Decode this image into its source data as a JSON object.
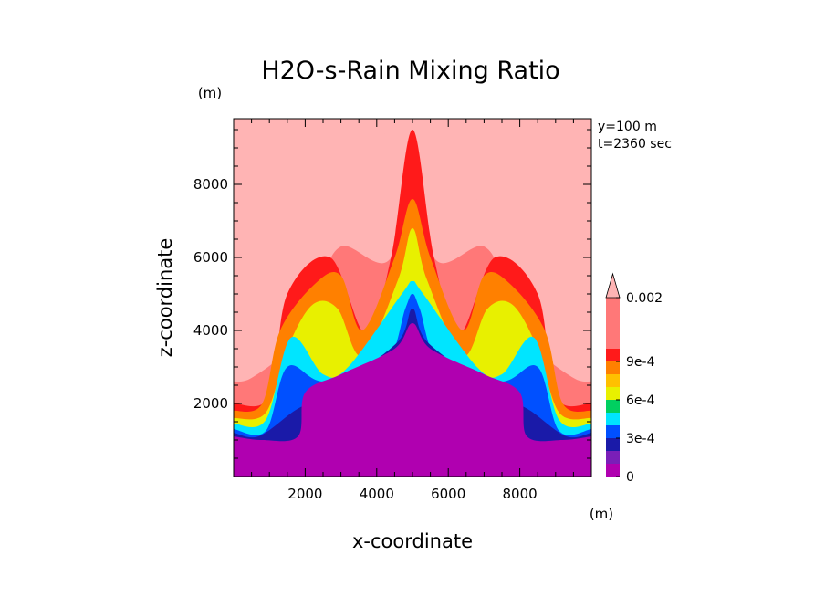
{
  "chart_data": {
    "type": "heatmap",
    "title": "H2O-s-Rain Mixing Ratio",
    "xlabel": "x-coordinate",
    "ylabel": "z-coordinate",
    "x_unit": "(m)",
    "y_unit": "(m)",
    "annotations": [
      "y=100 m",
      "t=2360 sec"
    ],
    "xlim": [
      0,
      10000
    ],
    "ylim": [
      0,
      9800
    ],
    "x_ticks": [
      2000,
      4000,
      6000,
      8000
    ],
    "y_ticks": [
      2000,
      4000,
      6000,
      8000
    ],
    "x_tick_labels": [
      "2000",
      "4000",
      "6000",
      "8000"
    ],
    "y_tick_labels": [
      "2000",
      "4000",
      "6000",
      "8000"
    ],
    "colorbar": {
      "levels": [
        0,
        0.0001,
        0.0002,
        0.0003,
        0.0004,
        0.0005,
        0.0006,
        0.0007,
        0.0008,
        0.0009,
        0.001,
        0.002
      ],
      "tick_labels": [
        "0",
        "3e-4",
        "6e-4",
        "9e-4",
        "0.002"
      ],
      "tick_values": [
        0,
        0.0003,
        0.0006,
        0.0009,
        0.002
      ],
      "colors": [
        "#b000b0",
        "#7a1fb8",
        "#1a1aa8",
        "#0050ff",
        "#00e5ff",
        "#00d060",
        "#e8f000",
        "#ffc000",
        "#ff8000",
        "#ff1a1a",
        "#ff7878",
        "#ffb4b4"
      ],
      "extend": "max"
    },
    "contours": [
      {
        "level_index": 11,
        "x": [
          0,
          0,
          900,
          1700,
          2500,
          4000,
          6000,
          7500,
          8300,
          9100,
          10000,
          10000
        ],
        "y": [
          9800,
          2600,
          2800,
          3600,
          5600,
          9200,
          9200,
          5600,
          3600,
          2800,
          2600,
          9800
        ]
      },
      {
        "level_index": 10,
        "x": [
          0,
          500,
          1500,
          2300,
          3000,
          4400,
          5000,
          5600,
          7000,
          7700,
          8500,
          9500,
          10000
        ],
        "y": [
          2600,
          2700,
          3500,
          5000,
          6300,
          6000,
          9500,
          6000,
          6300,
          5000,
          3500,
          2700,
          2600
        ]
      },
      {
        "level_index": 9,
        "x": [
          0,
          1000,
          1500,
          2700,
          3700,
          4400,
          5000,
          5600,
          6300,
          7300,
          8500,
          9000,
          10000
        ],
        "y": [
          2000,
          2200,
          5000,
          6000,
          3900,
          6000,
          9500,
          6000,
          3900,
          6000,
          5000,
          2200,
          2000
        ]
      },
      {
        "level_index": 8,
        "x": [
          0,
          800,
          1300,
          2300,
          3000,
          3600,
          4500,
          5000,
          5500,
          6400,
          7000,
          7700,
          8700,
          9200,
          10000
        ],
        "y": [
          1800,
          2000,
          4000,
          5300,
          5500,
          4000,
          6000,
          7600,
          6000,
          4000,
          5500,
          5300,
          4000,
          2000,
          1800
        ]
      },
      {
        "level_index": 6,
        "x": [
          0,
          900,
          1500,
          2200,
          2900,
          3600,
          4600,
          5000,
          5400,
          6400,
          7100,
          7800,
          8500,
          9100,
          10000
        ],
        "y": [
          1600,
          1750,
          3500,
          4700,
          4600,
          3300,
          5400,
          6800,
          5400,
          3300,
          4600,
          4700,
          3500,
          1750,
          1600
        ]
      },
      {
        "level_index": 4,
        "x": [
          0,
          900,
          1600,
          2500,
          3200,
          4700,
          5000,
          5300,
          6800,
          7500,
          8400,
          9100,
          10000
        ],
        "y": [
          1450,
          1550,
          3800,
          2800,
          3000,
          5000,
          5350,
          5000,
          3000,
          2800,
          3800,
          1550,
          1450
        ]
      },
      {
        "level_index": 3,
        "x": [
          0,
          900,
          1500,
          2500,
          4200,
          4800,
          5000,
          5200,
          5800,
          7500,
          8500,
          9100,
          10000
        ],
        "y": [
          1300,
          1250,
          3000,
          2600,
          3000,
          4600,
          5000,
          4600,
          3000,
          2600,
          3000,
          1250,
          1300
        ]
      },
      {
        "level_index": 2,
        "x": [
          0,
          700,
          1700,
          2300,
          3100,
          4600,
          5000,
          5400,
          6900,
          7700,
          8300,
          9300,
          10000
        ],
        "y": [
          1200,
          1100,
          1800,
          2100,
          2600,
          3700,
          4600,
          3700,
          2600,
          2100,
          1800,
          1100,
          1200
        ]
      },
      {
        "level_index": 0,
        "x": [
          0,
          800,
          1800,
          2000,
          3000,
          4500,
          5000,
          5500,
          7000,
          8000,
          8200,
          9200,
          10000
        ],
        "y": [
          1100,
          1000,
          1100,
          2300,
          2800,
          3500,
          4200,
          3500,
          2800,
          2300,
          1100,
          1000,
          1100
        ]
      }
    ]
  }
}
